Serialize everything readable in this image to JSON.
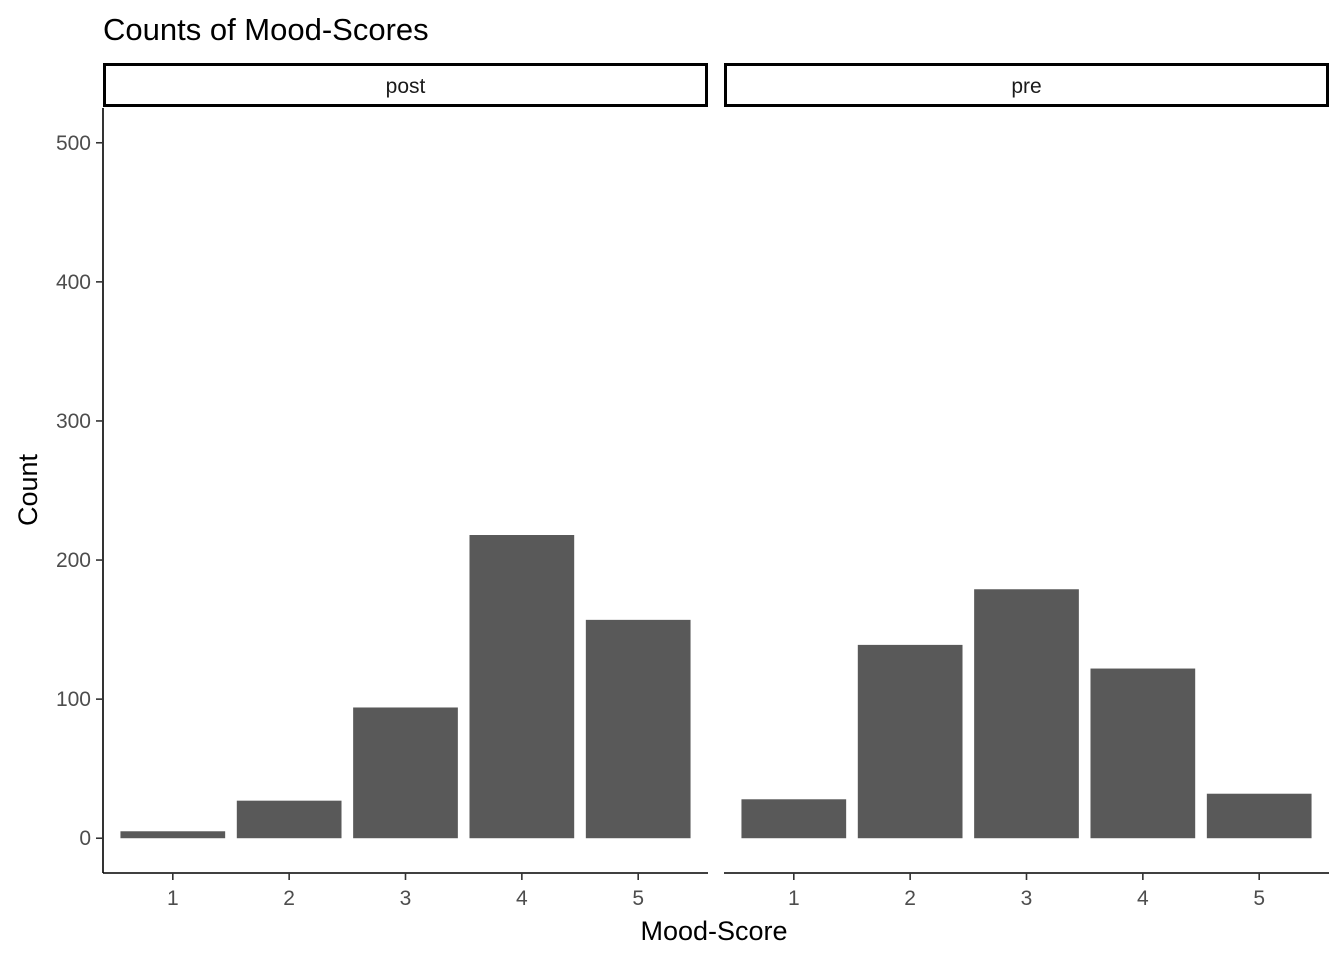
{
  "chart_data": {
    "type": "bar",
    "title": "Counts of Mood-Scores",
    "xlabel": "Mood-Score",
    "ylabel": "Count",
    "ylim": [
      -25,
      525
    ],
    "yticks": [
      0,
      100,
      200,
      300,
      400,
      500
    ],
    "categories": [
      "1",
      "2",
      "3",
      "4",
      "5"
    ],
    "facets": [
      {
        "name": "post",
        "values": [
          5,
          27,
          94,
          218,
          157
        ]
      },
      {
        "name": "pre",
        "values": [
          28,
          139,
          179,
          122,
          32
        ]
      }
    ],
    "bar_color": "#595959",
    "grid": false,
    "legend": "none"
  }
}
